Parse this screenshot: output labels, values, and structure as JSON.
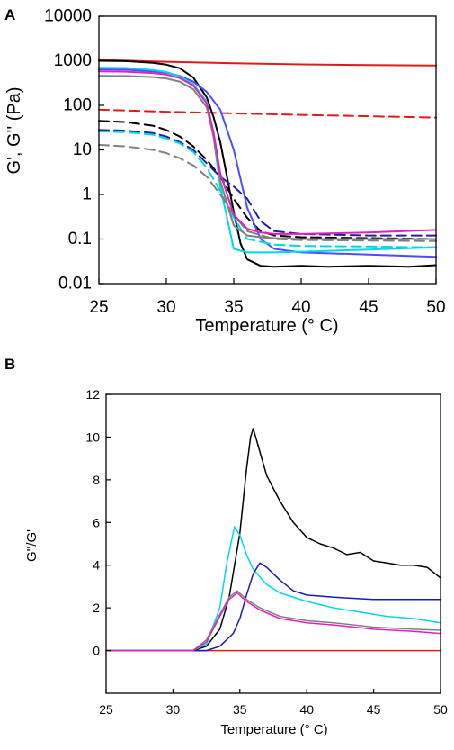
{
  "chart_data": [
    {
      "panel": "A",
      "type": "line",
      "xlabel": "Temperature (° C)",
      "ylabel": "G', G'' (Pa)",
      "xlim": [
        25,
        50
      ],
      "ylim": [
        0.01,
        10000
      ],
      "yscale": "log",
      "xticks": [
        "25",
        "30",
        "35",
        "40",
        "45",
        "50"
      ],
      "yticks": [
        "0.01",
        "0.1",
        "1",
        "10",
        "100",
        "1000",
        "10000"
      ],
      "grid": false,
      "series": [
        {
          "color": "#e31a1c",
          "dash": false,
          "x": [
            25,
            30,
            35,
            40,
            45,
            50
          ],
          "y": [
            1050,
            950,
            880,
            830,
            800,
            780
          ]
        },
        {
          "color": "#e31a1c",
          "dash": true,
          "x": [
            25,
            30,
            35,
            40,
            45,
            50
          ],
          "y": [
            80,
            72,
            66,
            61,
            57,
            53
          ]
        },
        {
          "color": "#000000",
          "dash": false,
          "x": [
            25,
            27,
            29,
            30,
            31,
            32,
            33,
            33.5,
            34,
            34.5,
            35,
            35.5,
            36,
            37,
            38,
            40,
            42,
            45,
            48,
            50
          ],
          "y": [
            1000,
            980,
            900,
            820,
            680,
            420,
            150,
            55,
            15,
            2.5,
            0.4,
            0.08,
            0.035,
            0.025,
            0.024,
            0.025,
            0.024,
            0.025,
            0.024,
            0.026
          ]
        },
        {
          "color": "#000000",
          "dash": true,
          "x": [
            25,
            27,
            29,
            30,
            31,
            32,
            33,
            34,
            35,
            36,
            37,
            38,
            40,
            45,
            50
          ],
          "y": [
            45,
            42,
            35,
            28,
            20,
            12,
            6,
            2.5,
            0.8,
            0.3,
            0.15,
            0.12,
            0.11,
            0.105,
            0.1
          ]
        },
        {
          "color": "#4d4dff",
          "dash": false,
          "x": [
            25,
            27,
            29,
            30,
            31,
            32,
            33,
            34,
            35,
            36,
            37,
            38,
            40,
            45,
            50
          ],
          "y": [
            640,
            630,
            580,
            540,
            460,
            340,
            200,
            80,
            10,
            0.5,
            0.1,
            0.06,
            0.05,
            0.045,
            0.04
          ]
        },
        {
          "color": "#2020a0",
          "dash": true,
          "x": [
            25,
            27,
            29,
            30,
            31,
            32,
            33,
            34,
            35,
            36,
            37,
            38,
            40,
            45,
            50
          ],
          "y": [
            28,
            27,
            24,
            20,
            15,
            10,
            5,
            2.5,
            1.5,
            0.8,
            0.25,
            0.15,
            0.13,
            0.12,
            0.12
          ]
        },
        {
          "color": "#00d8e8",
          "dash": false,
          "x": [
            25,
            27,
            29,
            30,
            31,
            32,
            33,
            33.5,
            34,
            35,
            36,
            37,
            38,
            40,
            45,
            50
          ],
          "y": [
            700,
            690,
            620,
            560,
            450,
            300,
            120,
            20,
            1.5,
            0.06,
            0.05,
            0.05,
            0.05,
            0.052,
            0.058,
            0.065
          ]
        },
        {
          "color": "#00d8e8",
          "dash": true,
          "x": [
            25,
            27,
            29,
            30,
            31,
            32,
            33,
            34,
            35,
            36,
            38,
            40,
            45,
            50
          ],
          "y": [
            26,
            25,
            22,
            18,
            14,
            9,
            4,
            1.2,
            0.3,
            0.1,
            0.075,
            0.07,
            0.068,
            0.065
          ]
        },
        {
          "color": "#808080",
          "dash": false,
          "x": [
            25,
            27,
            29,
            30,
            31,
            32,
            33,
            33.5,
            34,
            35,
            36,
            37,
            38,
            40,
            45,
            50
          ],
          "y": [
            460,
            455,
            430,
            400,
            340,
            230,
            90,
            20,
            2,
            0.2,
            0.12,
            0.11,
            0.105,
            0.1,
            0.1,
            0.1
          ]
        },
        {
          "color": "#808080",
          "dash": true,
          "x": [
            25,
            27,
            29,
            30,
            31,
            32,
            33,
            34,
            35,
            36,
            38,
            40,
            45,
            50
          ],
          "y": [
            13,
            12,
            10,
            8.5,
            6.5,
            4.5,
            2.5,
            1,
            0.35,
            0.15,
            0.1,
            0.095,
            0.092,
            0.09
          ]
        },
        {
          "color": "#e020c0",
          "dash": false,
          "x": [
            25,
            27,
            29,
            30,
            31,
            32,
            33,
            33.5,
            34,
            35,
            36,
            37,
            38,
            40,
            45,
            50
          ],
          "y": [
            580,
            570,
            530,
            490,
            410,
            280,
            110,
            25,
            3,
            0.35,
            0.17,
            0.14,
            0.13,
            0.13,
            0.14,
            0.16
          ]
        }
      ]
    },
    {
      "panel": "B",
      "type": "line",
      "xlabel": "Temperature (° C)",
      "ylabel": "G''/G'",
      "xlim": [
        25,
        50
      ],
      "ylim": [
        -2,
        12
      ],
      "xticks": [
        "25",
        "30",
        "35",
        "40",
        "45",
        "50"
      ],
      "yticks": [
        "0",
        "2",
        "4",
        "6",
        "8",
        "10",
        "12"
      ],
      "grid": false,
      "series": [
        {
          "color": "#e31a1c",
          "x": [
            25,
            50
          ],
          "y": [
            0,
            0
          ]
        },
        {
          "color": "#000000",
          "x": [
            25,
            31.5,
            32.5,
            33.5,
            34.2,
            35,
            35.5,
            35.8,
            36,
            36.5,
            37,
            38,
            39,
            40,
            41,
            42,
            43,
            44,
            45,
            46,
            47,
            48,
            49,
            50
          ],
          "y": [
            0,
            0,
            0.2,
            1.0,
            2.5,
            5.5,
            8.5,
            10.0,
            10.4,
            9.3,
            8.2,
            7.0,
            6.0,
            5.3,
            5.0,
            4.8,
            4.5,
            4.6,
            4.2,
            4.1,
            4.0,
            4.0,
            3.9,
            3.4
          ]
        },
        {
          "color": "#00d8e8",
          "x": [
            25,
            31.5,
            32.5,
            33.5,
            34,
            34.6,
            35,
            35.5,
            36,
            37,
            38,
            40,
            42,
            44,
            46,
            48,
            50
          ],
          "y": [
            0,
            0,
            0.3,
            2.0,
            4.0,
            5.8,
            5.4,
            4.5,
            3.8,
            3.1,
            2.7,
            2.3,
            2.0,
            1.8,
            1.6,
            1.5,
            1.3
          ]
        },
        {
          "color": "#1a1ab0",
          "x": [
            25,
            32.5,
            33.5,
            34.5,
            35,
            35.5,
            36,
            36.5,
            37,
            38,
            39,
            40,
            42,
            45,
            48,
            50
          ],
          "y": [
            0,
            0,
            0.2,
            0.8,
            1.5,
            2.6,
            3.6,
            4.1,
            3.9,
            3.3,
            2.8,
            2.6,
            2.5,
            2.4,
            2.4,
            2.4
          ]
        },
        {
          "color": "#808080",
          "x": [
            25,
            31.5,
            32.5,
            33.5,
            34.2,
            34.8,
            35.5,
            36.5,
            38,
            40,
            42,
            45,
            48,
            50
          ],
          "y": [
            0,
            0,
            0.5,
            1.7,
            2.5,
            2.8,
            2.4,
            2.0,
            1.6,
            1.4,
            1.3,
            1.1,
            1.0,
            0.95
          ]
        },
        {
          "color": "#e020c0",
          "x": [
            25,
            31.5,
            32.5,
            33.5,
            34.2,
            34.8,
            35.5,
            36.5,
            38,
            40,
            42,
            45,
            48,
            50
          ],
          "y": [
            0,
            0,
            0.4,
            1.6,
            2.4,
            2.7,
            2.3,
            1.9,
            1.5,
            1.3,
            1.2,
            1.0,
            0.9,
            0.8
          ]
        }
      ]
    }
  ]
}
